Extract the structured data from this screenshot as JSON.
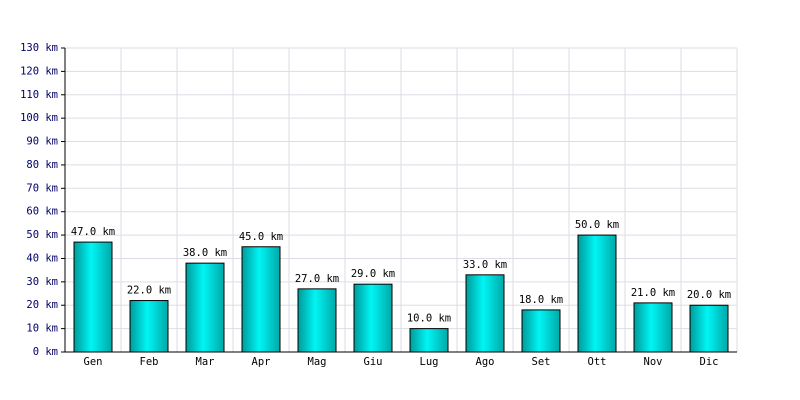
{
  "chart_data": {
    "type": "bar",
    "categories": [
      "Gen",
      "Feb",
      "Mar",
      "Apr",
      "Mag",
      "Giu",
      "Lug",
      "Ago",
      "Set",
      "Ott",
      "Nov",
      "Dic"
    ],
    "values": [
      47,
      22,
      38,
      45,
      27,
      29,
      10,
      33,
      18,
      50,
      21,
      20
    ],
    "value_labels": [
      "47.0 km",
      "22.0 km",
      "38.0 km",
      "45.0 km",
      "27.0 km",
      "29.0 km",
      "10.0 km",
      "33.0 km",
      "18.0 km",
      "50.0 km",
      "21.0 km",
      "20.0 km"
    ],
    "color": "#00cccc",
    "ylim": [
      0,
      130
    ],
    "yticks": [
      {
        "value": 0,
        "label": "0 km"
      },
      {
        "value": 10,
        "label": "10 km"
      },
      {
        "value": 20,
        "label": "20 km"
      },
      {
        "value": 30,
        "label": "30 km"
      },
      {
        "value": 40,
        "label": "40 km"
      },
      {
        "value": 50,
        "label": "50 km"
      },
      {
        "value": 60,
        "label": "60 km"
      },
      {
        "value": 70,
        "label": "70 km"
      },
      {
        "value": 80,
        "label": "80 km"
      },
      {
        "value": 90,
        "label": "90 km"
      },
      {
        "value": 100,
        "label": "100 km"
      },
      {
        "value": 110,
        "label": "110 km"
      },
      {
        "value": 120,
        "label": "120 km"
      },
      {
        "value": 130,
        "label": "130 km"
      }
    ],
    "grid": true
  }
}
